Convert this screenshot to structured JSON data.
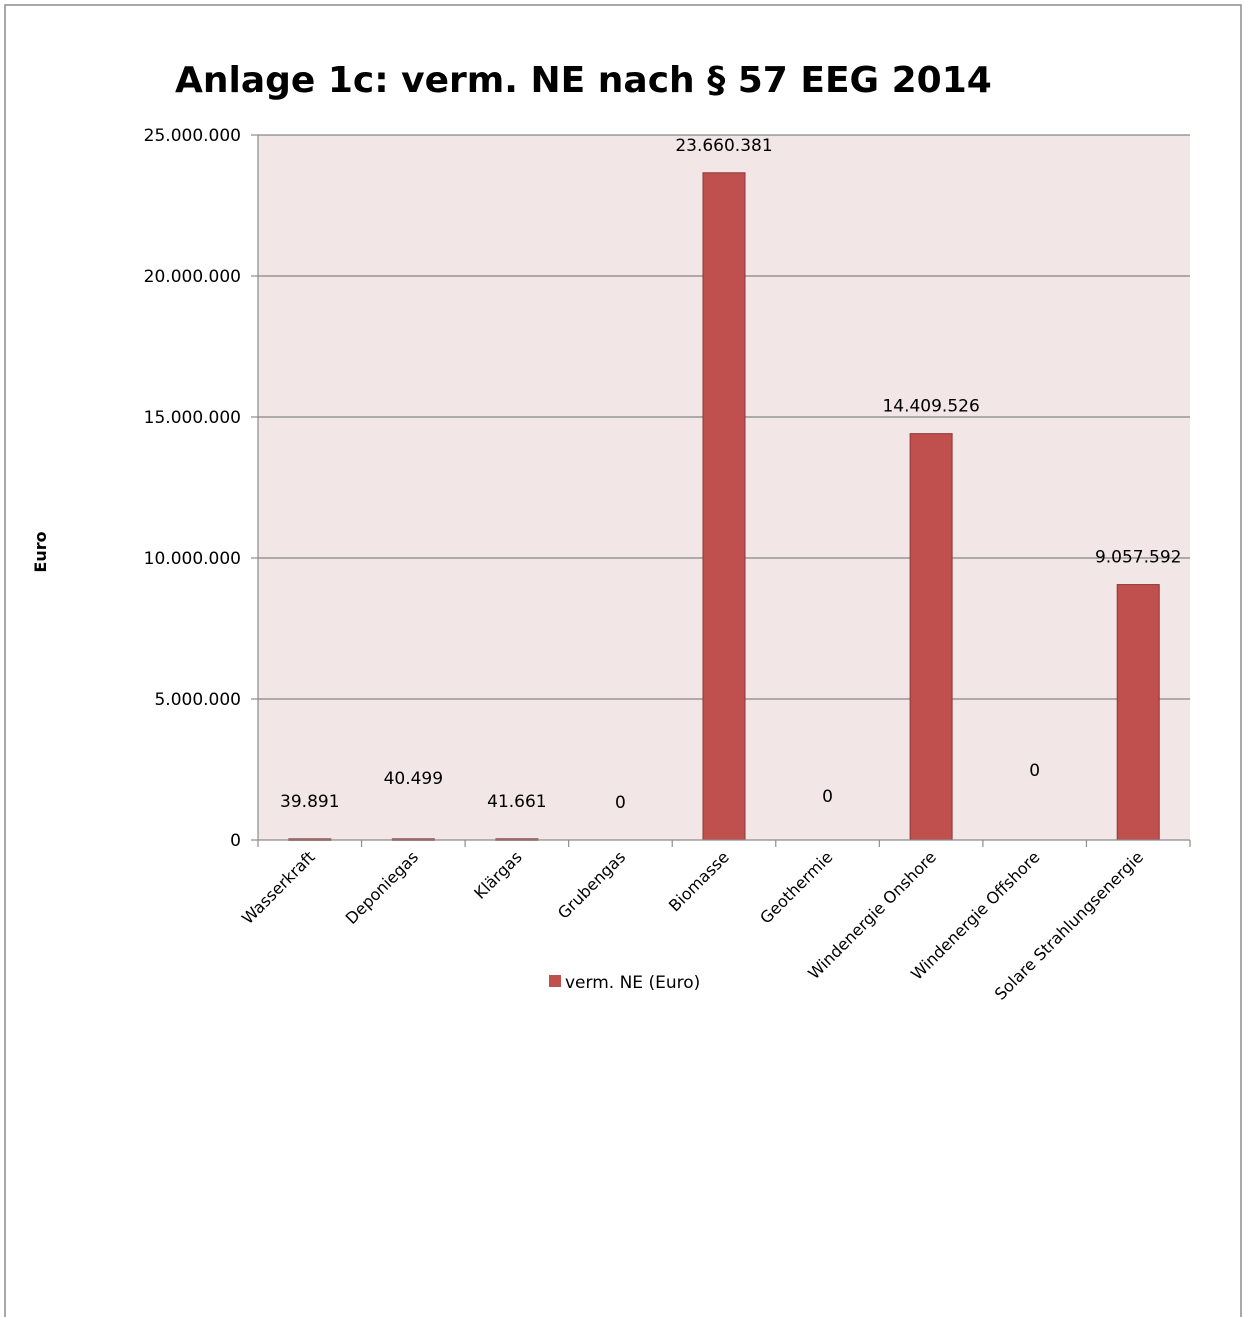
{
  "chart_data": {
    "type": "bar",
    "title": "Anlage 1c: verm. NE nach § 57 EEG 2014",
    "xlabel": "",
    "ylabel": "Euro",
    "ylim": [
      0,
      25000000
    ],
    "yticks": [
      0,
      5000000,
      10000000,
      15000000,
      20000000,
      25000000
    ],
    "ytick_labels": [
      "0",
      "5.000.000",
      "10.000.000",
      "15.000.000",
      "20.000.000",
      "25.000.000"
    ],
    "grid": true,
    "legend_position": "bottom",
    "categories": [
      "Wasserkraft",
      "Deponiegas",
      "Klärgas",
      "Grubengas",
      "Biomasse",
      "Geothermie",
      "Windenergie Onshore",
      "Windenergie Offshore",
      "Solare Strahlungsenergie"
    ],
    "series": [
      {
        "name": "verm. NE (Euro)",
        "values": [
          39891,
          40499,
          41661,
          0,
          23660381,
          0,
          14409526,
          0,
          9057592
        ],
        "data_labels": [
          "39.891",
          "40.499",
          "41.661",
          "0",
          "23.660.381",
          "0",
          "14.409.526",
          "0",
          "9.057.592"
        ],
        "color": "#c0504d"
      }
    ]
  },
  "colors": {
    "plot_background": "#f2e6e6",
    "bar_fill": "#c0504d",
    "bar_stroke": "#8c3836",
    "gridline": "#868686",
    "frame": "#8c8c8c"
  }
}
